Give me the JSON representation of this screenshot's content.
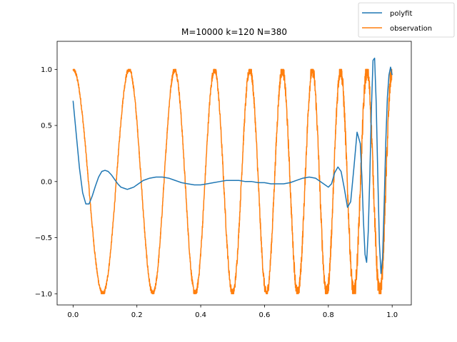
{
  "chart_data": {
    "type": "line",
    "title": "M=10000 k=120 N=380",
    "xlabel": "",
    "ylabel": "",
    "xlim": [
      -0.05,
      1.06
    ],
    "ylim": [
      -1.1,
      1.25
    ],
    "xticks": [
      0.0,
      0.2,
      0.4,
      0.6,
      0.8,
      1.0
    ],
    "xtick_labels": [
      "0.0",
      "0.2",
      "0.4",
      "0.6",
      "0.8",
      "1.0"
    ],
    "yticks": [
      -1.0,
      -0.5,
      0.0,
      0.5,
      1.0
    ],
    "ytick_labels": [
      "−1.0",
      "−0.5",
      "0.0",
      "0.5",
      "1.0"
    ],
    "grid": false,
    "legend_position": "top-right (outside axes)",
    "series": [
      {
        "name": "polyfit",
        "color": "#1f77b4",
        "x": [
          0.0,
          0.01,
          0.02,
          0.03,
          0.04,
          0.05,
          0.06,
          0.07,
          0.08,
          0.09,
          0.1,
          0.11,
          0.12,
          0.13,
          0.14,
          0.15,
          0.16,
          0.17,
          0.18,
          0.19,
          0.2,
          0.21,
          0.22,
          0.24,
          0.26,
          0.28,
          0.3,
          0.32,
          0.34,
          0.36,
          0.38,
          0.4,
          0.42,
          0.44,
          0.46,
          0.48,
          0.5,
          0.52,
          0.54,
          0.56,
          0.58,
          0.6,
          0.62,
          0.64,
          0.66,
          0.68,
          0.7,
          0.72,
          0.74,
          0.76,
          0.78,
          0.8,
          0.81,
          0.82,
          0.83,
          0.84,
          0.85,
          0.86,
          0.87,
          0.88,
          0.89,
          0.9,
          0.905,
          0.91,
          0.915,
          0.92,
          0.925,
          0.93,
          0.935,
          0.94,
          0.945,
          0.95,
          0.955,
          0.96,
          0.965,
          0.97,
          0.975,
          0.98,
          0.985,
          0.99,
          0.995,
          1.0
        ],
        "y": [
          0.72,
          0.42,
          0.12,
          -0.1,
          -0.2,
          -0.2,
          -0.13,
          -0.04,
          0.04,
          0.09,
          0.1,
          0.09,
          0.06,
          0.02,
          -0.02,
          -0.05,
          -0.06,
          -0.07,
          -0.06,
          -0.05,
          -0.03,
          -0.01,
          0.01,
          0.03,
          0.04,
          0.04,
          0.03,
          0.01,
          -0.01,
          -0.02,
          -0.03,
          -0.03,
          -0.02,
          -0.01,
          0.0,
          0.01,
          0.01,
          0.01,
          0.0,
          0.0,
          -0.01,
          -0.01,
          -0.02,
          -0.02,
          -0.02,
          -0.01,
          0.01,
          0.03,
          0.04,
          0.03,
          -0.01,
          -0.05,
          -0.02,
          0.08,
          0.13,
          0.09,
          -0.06,
          -0.23,
          -0.18,
          0.12,
          0.44,
          0.34,
          0.05,
          -0.35,
          -0.65,
          -0.72,
          -0.45,
          0.05,
          0.65,
          1.08,
          1.1,
          0.7,
          0.05,
          -0.55,
          -0.82,
          -0.68,
          -0.2,
          0.35,
          0.75,
          0.95,
          1.02,
          0.95
        ]
      },
      {
        "name": "observation",
        "color": "#ff7f0e",
        "function": "cos(2*pi*5*x + 2*pi*4*x^2), noise increasing with x",
        "x_range": [
          0.0,
          1.0
        ],
        "y_range": [
          -1.0,
          1.0
        ]
      }
    ]
  },
  "legend": {
    "items": [
      {
        "label": "polyfit",
        "color": "#1f77b4"
      },
      {
        "label": "observation",
        "color": "#ff7f0e"
      }
    ]
  }
}
